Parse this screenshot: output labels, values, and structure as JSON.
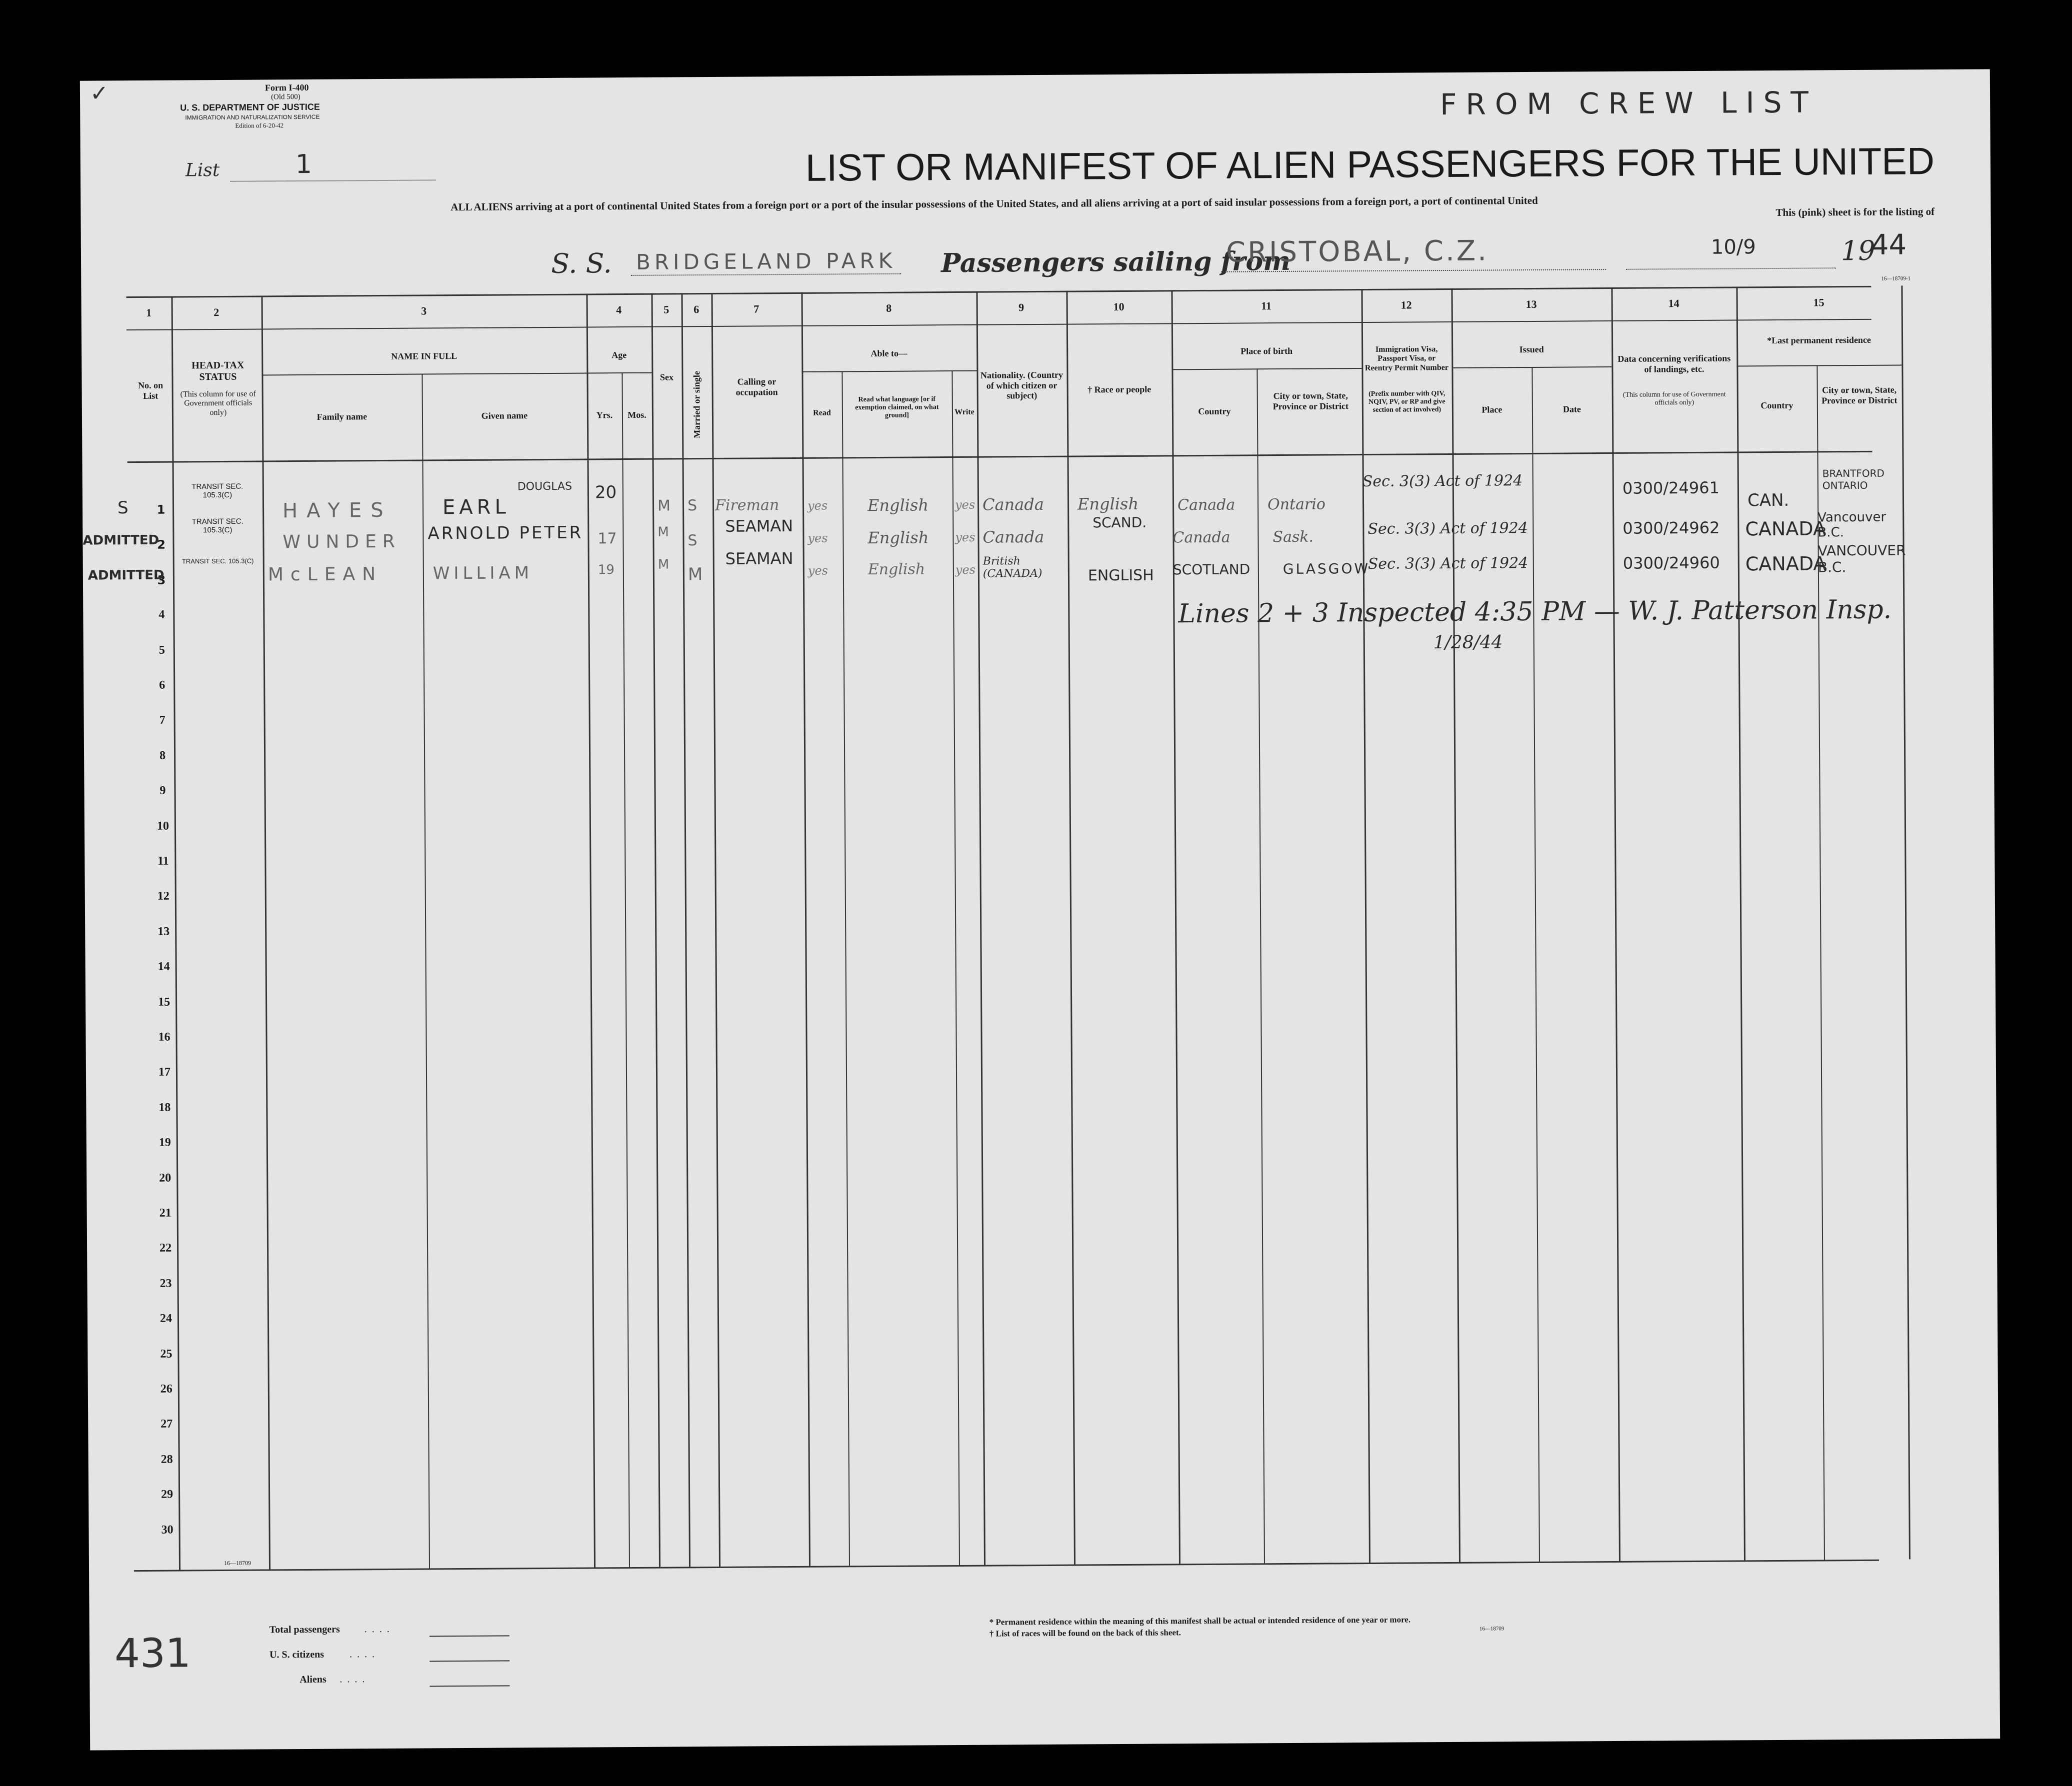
{
  "form": {
    "form_no": "Form I-400",
    "old": "(Old 500)",
    "dept": "U. S. DEPARTMENT OF JUSTICE",
    "service": "IMMIGRATION AND NATURALIZATION SERVICE",
    "edition": "Edition of 6-20-42",
    "list_label": "List",
    "list_value": "1",
    "title": "LIST OR MANIFEST OF ALIEN PASSENGERS FOR THE UNITED",
    "subtitle": "ALL ALIENS arriving at a port of continental United States from a foreign port or a port of the insular possessions of the United States, and all aliens arriving at a port of said insular possessions from a foreign port, a port of continental United",
    "subtitle2": "This (pink) sheet is for the listing of",
    "ss_label": "S. S.",
    "ss_value": "BRIDGELAND PARK",
    "sailing_label": "Passengers sailing from",
    "sailing_value": "CRISTOBAL, C.Z.",
    "date_value": "10/9",
    "year_prefix": "19",
    "year_value": "44",
    "handwritten_top": "FROM CREW LIST",
    "checkmark": "✓",
    "code": "16—18709-1",
    "code_bottom": "16—18709",
    "code_footer": "16—18709"
  },
  "columns": {
    "nums": [
      "1",
      "2",
      "3",
      "4",
      "5",
      "6",
      "7",
      "8",
      "9",
      "10",
      "11",
      "12",
      "13",
      "14",
      "15"
    ],
    "no_on_list": "No. on List",
    "head_tax": "HEAD-TAX STATUS",
    "head_tax_note": "(This column for use of Government officials only)",
    "name_in_full": "NAME IN FULL",
    "family_name": "Family name",
    "given_name": "Given name",
    "age": "Age",
    "yrs": "Yrs.",
    "mos": "Mos.",
    "sex": "Sex",
    "married": "Married or single",
    "calling": "Calling or occupation",
    "able_to": "Able to—",
    "read": "Read",
    "read_what": "Read what language [or if exemption claimed, on what ground]",
    "write": "Write",
    "nationality": "Nationality. (Country of which citizen or subject)",
    "race": "† Race or people",
    "place_of_birth": "Place of birth",
    "country": "Country",
    "city": "City or town, State, Province or District",
    "visa": "Immigration Visa, Passport Visa, or Reentry Permit Number",
    "visa_note": "(Prefix number with QIV, NQIV, PV, or RP and give section of act involved)",
    "issued": "Issued",
    "place": "Place",
    "date": "Date",
    "data_concerning": "Data concerning verifications of landings, etc.",
    "data_note": "(This column for use of Government officials only)",
    "last_residence": "*Last permanent residence",
    "res_country": "Country",
    "res_city": "City or town, State, Province or District"
  },
  "rows": [
    {
      "no": "1",
      "head_tax": "TRANSIT SEC. 105.3(C)",
      "family": "HAYES",
      "given": "EARL",
      "given_extra": "DOUGLAS",
      "age": "20",
      "sex": "M",
      "married": "S",
      "calling": "Fireman",
      "read": "yes",
      "language": "English",
      "write": "yes",
      "nationality": "Canada",
      "race": "English",
      "country": "Canada",
      "city": "Ontario",
      "visa": "Sec. 3(3) Act of 1924",
      "verification": "0300/24961",
      "res_country": "CAN.",
      "res_city": "BRANTFORD ONTARIO",
      "margin": "S"
    },
    {
      "no": "2",
      "head_tax": "TRANSIT SEC. 105.3(C)",
      "family": "WUNDER",
      "given": "ARNOLD PETER",
      "age": "17",
      "sex": "M",
      "married": "S",
      "calling": "SEAMAN",
      "read": "yes",
      "language": "English",
      "write": "yes",
      "nationality": "Canada",
      "race": "SCAND.",
      "country": "Canada",
      "city": "Sask.",
      "visa": "Sec. 3(3) Act of 1924",
      "verification": "0300/24962",
      "res_country": "CANADA",
      "res_city": "Vancouver B.C.",
      "margin": "ADMITTED"
    },
    {
      "no": "3",
      "head_tax": "TRANSIT SEC. 105.3(C)",
      "family": "McLEAN",
      "given": "WILLIAM",
      "age": "19",
      "sex": "M",
      "married": "M",
      "calling": "SEAMAN",
      "read": "yes",
      "language": "English",
      "write": "yes",
      "nationality": "British (CANADA)",
      "race": "ENGLISH",
      "country": "SCOTLAND",
      "city": "GLASGOW",
      "visa": "Sec. 3(3) Act of 1924",
      "verification": "0300/24960",
      "res_country": "CANADA",
      "res_city": "VANCOUVER B.C.",
      "margin": "ADMITTED"
    }
  ],
  "row_numbers": [
    "1",
    "2",
    "3",
    "4",
    "5",
    "6",
    "7",
    "8",
    "9",
    "10",
    "11",
    "12",
    "13",
    "14",
    "15",
    "16",
    "17",
    "18",
    "19",
    "20",
    "21",
    "22",
    "23",
    "24",
    "25",
    "26",
    "27",
    "28",
    "29",
    "30"
  ],
  "annotation": {
    "line": "Lines 2 + 3 Inspected 4:35 PM — W. J. Patterson Insp.",
    "date": "1/28/44",
    "margin_number": "431"
  },
  "footer": {
    "total": "Total passengers",
    "citizens": "U. S. citizens",
    "aliens": "Aliens",
    "note1": "* Permanent residence within the meaning of this manifest shall be actual or intended residence of one year or more.",
    "note2": "† List of races will be found on the back of this sheet."
  }
}
